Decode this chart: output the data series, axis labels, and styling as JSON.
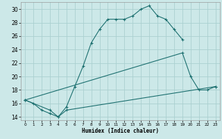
{
  "xlabel": "Humidex (Indice chaleur)",
  "bg_color": "#cce8e8",
  "grid_color": "#aad0d0",
  "line_color": "#1a6e6e",
  "ylim": [
    13.5,
    31.0
  ],
  "xlim": [
    -0.5,
    23.5
  ],
  "yticks": [
    14,
    16,
    18,
    20,
    22,
    24,
    26,
    28,
    30
  ],
  "xticks": [
    0,
    1,
    2,
    3,
    4,
    5,
    6,
    7,
    8,
    9,
    10,
    11,
    12,
    13,
    14,
    15,
    16,
    17,
    18,
    19,
    20,
    21,
    22,
    23
  ],
  "line1_x": [
    0,
    1,
    2,
    3,
    4,
    5,
    6,
    7,
    8,
    9,
    10,
    11,
    12,
    13,
    14,
    15,
    16,
    17,
    18,
    19
  ],
  "line1_y": [
    16.5,
    16.0,
    15.0,
    14.5,
    14.0,
    15.5,
    18.5,
    21.5,
    25.0,
    27.0,
    28.5,
    28.5,
    28.5,
    29.0,
    30.0,
    30.5,
    29.0,
    28.5,
    27.0,
    25.5
  ],
  "line2_x": [
    0,
    19,
    20,
    21,
    22,
    23
  ],
  "line2_y": [
    16.5,
    23.5,
    20.0,
    18.0,
    18.0,
    18.5
  ],
  "line3_x": [
    0,
    3,
    4,
    5,
    23
  ],
  "line3_y": [
    16.5,
    15.0,
    14.0,
    15.0,
    18.5
  ]
}
